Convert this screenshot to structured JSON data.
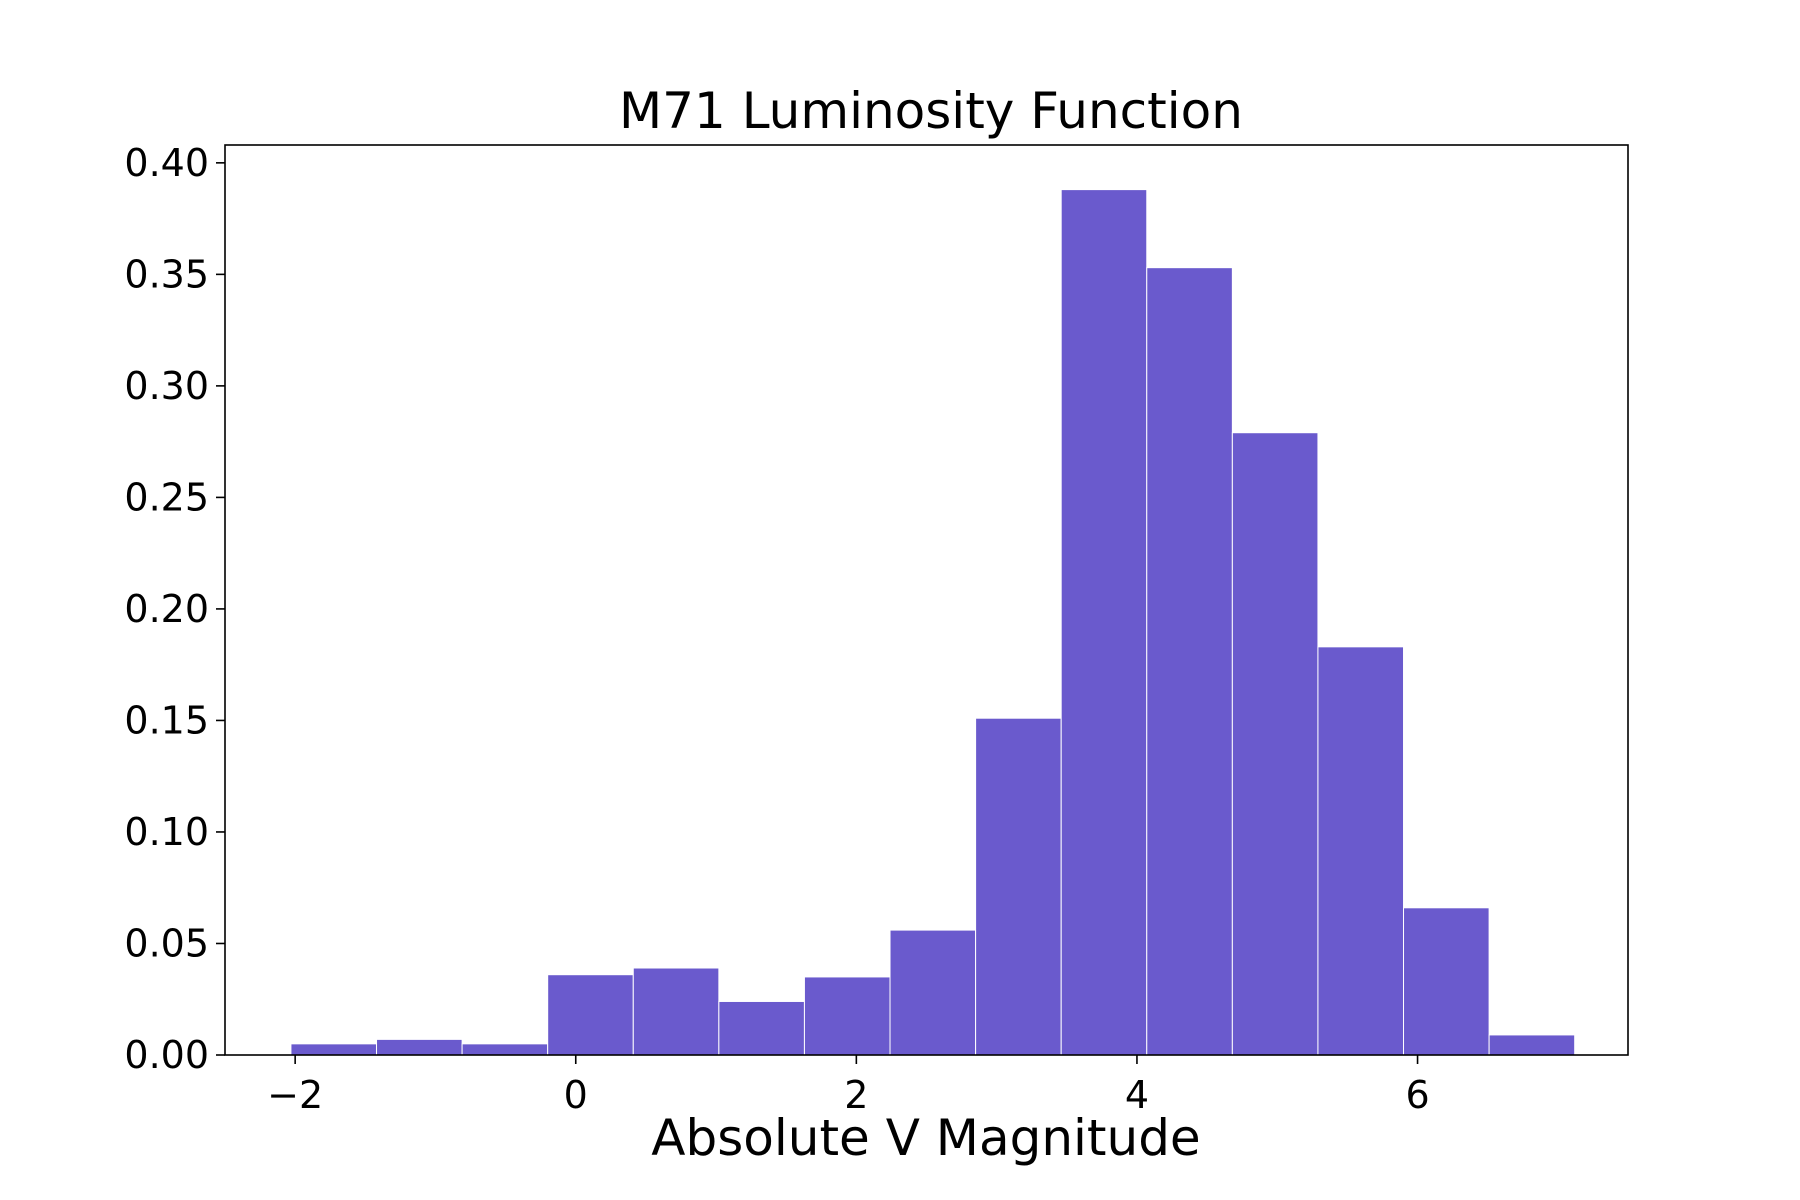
{
  "chart_data": {
    "type": "bar",
    "title": "M71 Luminosity Function",
    "xlabel": "Absolute V Magnitude",
    "ylabel": "",
    "xlim": [
      -2.5,
      7.5
    ],
    "ylim": [
      0,
      0.408
    ],
    "xticks": [
      -2,
      0,
      2,
      4,
      6
    ],
    "xtick_labels": [
      "−2",
      "0",
      "2",
      "4",
      "6"
    ],
    "yticks": [
      0,
      0.05,
      0.1,
      0.15,
      0.2,
      0.25,
      0.3,
      0.35,
      0.4
    ],
    "ytick_labels": [
      "0.00",
      "0.05",
      "0.10",
      "0.15",
      "0.20",
      "0.25",
      "0.30",
      "0.35",
      "0.40"
    ],
    "bin_edges": [
      -2.03,
      -1.42,
      -0.81,
      -0.2,
      0.41,
      1.02,
      1.63,
      2.24,
      2.85,
      3.46,
      4.07,
      4.68,
      5.29,
      5.9,
      6.51,
      7.12
    ],
    "values": [
      0.005,
      0.007,
      0.005,
      0.036,
      0.039,
      0.024,
      0.035,
      0.056,
      0.151,
      0.388,
      0.353,
      0.279,
      0.183,
      0.066,
      0.009
    ],
    "bar_color": "#6a5acd",
    "grid": false,
    "legend": false
  }
}
